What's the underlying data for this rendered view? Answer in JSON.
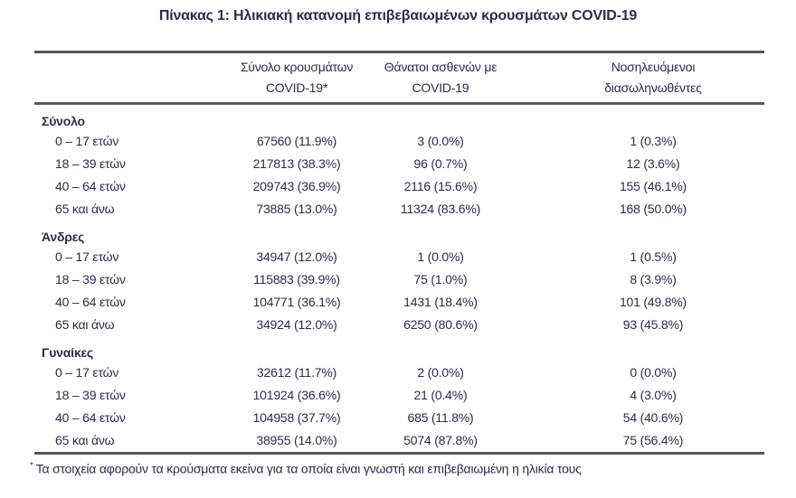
{
  "title": "Πίνακας 1: Ηλικιακή κατανομή επιβεβαιωμένων κρουσμάτων COVID-19",
  "table": {
    "headers": [
      {
        "name": "cases",
        "lines": [
          "Σύνολο κρουσμάτων",
          "COVID-19*"
        ]
      },
      {
        "name": "deaths",
        "lines": [
          "Θάνατοι ασθενών με",
          "COVID-19"
        ]
      },
      {
        "name": "intubated",
        "lines": [
          "Νοσηλευόμενοι",
          "διασωληνωθέντες"
        ]
      }
    ],
    "sections": [
      {
        "label": "Σύνολο",
        "rows": [
          {
            "label": "0 – 17 ετών",
            "cases": "67560 (11.9%)",
            "deaths": "3 (0.0%)",
            "intubated": "1 (0.3%)"
          },
          {
            "label": "18 – 39 ετών",
            "cases": "217813 (38.3%)",
            "deaths": "96 (0.7%)",
            "intubated": "12 (3.6%)"
          },
          {
            "label": "40 – 64 ετών",
            "cases": "209743 (36.9%)",
            "deaths": "2116 (15.6%)",
            "intubated": "155 (46.1%)"
          },
          {
            "label": "65 και άνω",
            "cases": "73885 (13.0%)",
            "deaths": "11324 (83.6%)",
            "intubated": "168 (50.0%)"
          }
        ]
      },
      {
        "label": "Άνδρες",
        "rows": [
          {
            "label": "0 – 17 ετών",
            "cases": "34947 (12.0%)",
            "deaths": "1 (0.0%)",
            "intubated": "1 (0.5%)"
          },
          {
            "label": "18 – 39 ετών",
            "cases": "115883 (39.9%)",
            "deaths": "75 (1.0%)",
            "intubated": "8 (3.9%)"
          },
          {
            "label": "40 – 64 ετών",
            "cases": "104771 (36.1%)",
            "deaths": "1431 (18.4%)",
            "intubated": "101 (49.8%)"
          },
          {
            "label": "65 και άνω",
            "cases": "34924 (12.0%)",
            "deaths": "6250 (80.6%)",
            "intubated": "93 (45.8%)"
          }
        ]
      },
      {
        "label": "Γυναίκες",
        "rows": [
          {
            "label": "0 – 17 ετών",
            "cases": "32612 (11.7%)",
            "deaths": "2 (0.0%)",
            "intubated": "0 (0.0%)"
          },
          {
            "label": "18 – 39 ετών",
            "cases": "101924 (36.6%)",
            "deaths": "21 (0.4%)",
            "intubated": "4 (3.0%)"
          },
          {
            "label": "40 – 64 ετών",
            "cases": "104958 (37.7%)",
            "deaths": "685 (11.8%)",
            "intubated": "54 (40.6%)"
          },
          {
            "label": "65 και άνω",
            "cases": "38955 (14.0%)",
            "deaths": "5074 (87.8%)",
            "intubated": "75 (56.4%)"
          }
        ]
      }
    ],
    "footnote_marker": "*",
    "footnote_text": "Τα στοιχεία αφορούν τα κρούσματα εκείνα για τα οποία είναι γνωστή και επιβεβαιωμένη η ηλικία τους"
  },
  "colors": {
    "text": "#2d2d47",
    "rule": "#585858",
    "background": "#ffffff"
  }
}
